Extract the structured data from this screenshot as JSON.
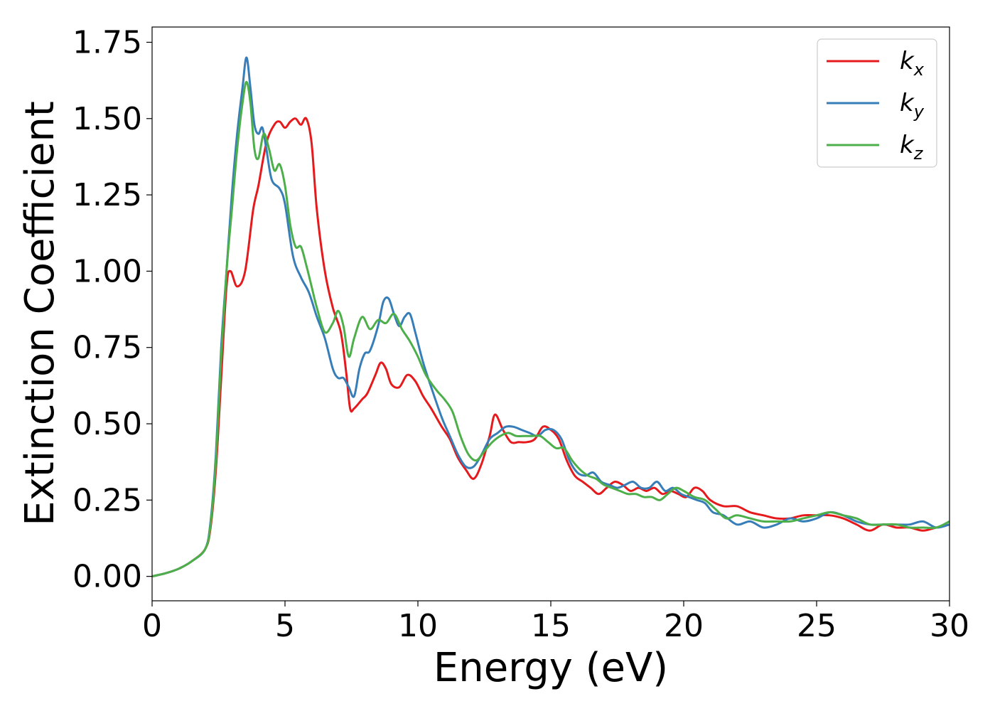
{
  "chart_data": {
    "type": "line",
    "xlabel": "Energy (eV)",
    "ylabel": "Extinction Coefficient",
    "xlim": [
      0,
      30
    ],
    "ylim": [
      -0.08,
      1.8
    ],
    "xticks": [
      0,
      5,
      10,
      15,
      20,
      25,
      30
    ],
    "xtick_labels": [
      "0",
      "5",
      "10",
      "15",
      "20",
      "25",
      "30"
    ],
    "yticks": [
      0,
      0.25,
      0.5,
      0.75,
      1.0,
      1.25,
      1.5,
      1.75
    ],
    "ytick_labels": [
      "0.00",
      "0.25",
      "0.50",
      "0.75",
      "1.00",
      "1.25",
      "1.50",
      "1.75"
    ],
    "grid": false,
    "legend": {
      "position": "upper right"
    },
    "series": [
      {
        "name": "kx",
        "label_base": "k",
        "label_sub": "x",
        "color": "#e41a1c",
        "x": [
          0,
          0.5,
          1,
          1.5,
          2,
          2.2,
          2.4,
          2.6,
          2.8,
          2.95,
          3.2,
          3.5,
          3.8,
          4.0,
          4.3,
          4.6,
          4.8,
          5.0,
          5.2,
          5.4,
          5.6,
          5.8,
          6.0,
          6.2,
          6.5,
          6.8,
          7.1,
          7.3,
          7.45,
          7.6,
          7.9,
          8.1,
          8.4,
          8.6,
          8.8,
          9.0,
          9.3,
          9.6,
          9.9,
          10.2,
          10.5,
          10.9,
          11.2,
          11.5,
          11.8,
          12.1,
          12.4,
          12.7,
          12.9,
          13.2,
          13.5,
          13.8,
          14.1,
          14.4,
          14.7,
          15.0,
          15.3,
          15.6,
          15.9,
          16.2,
          16.5,
          16.8,
          17.1,
          17.4,
          17.7,
          18.0,
          18.3,
          18.6,
          18.9,
          19.2,
          19.5,
          19.8,
          20.1,
          20.4,
          20.7,
          21.0,
          21.5,
          22,
          22.5,
          23,
          23.5,
          24,
          24.5,
          25,
          25.5,
          26,
          26.5,
          27,
          27.5,
          28,
          28.5,
          29,
          29.5,
          30
        ],
        "y": [
          0.0,
          0.01,
          0.025,
          0.05,
          0.09,
          0.16,
          0.35,
          0.65,
          0.95,
          1.0,
          0.95,
          1.0,
          1.2,
          1.28,
          1.42,
          1.48,
          1.49,
          1.47,
          1.49,
          1.5,
          1.48,
          1.5,
          1.42,
          1.2,
          1.0,
          0.88,
          0.8,
          0.67,
          0.55,
          0.55,
          0.58,
          0.6,
          0.66,
          0.7,
          0.68,
          0.63,
          0.62,
          0.66,
          0.64,
          0.59,
          0.55,
          0.49,
          0.45,
          0.39,
          0.35,
          0.32,
          0.37,
          0.46,
          0.53,
          0.48,
          0.44,
          0.44,
          0.44,
          0.45,
          0.49,
          0.48,
          0.45,
          0.38,
          0.33,
          0.31,
          0.29,
          0.27,
          0.29,
          0.31,
          0.3,
          0.28,
          0.29,
          0.28,
          0.29,
          0.27,
          0.28,
          0.27,
          0.26,
          0.29,
          0.28,
          0.25,
          0.23,
          0.23,
          0.21,
          0.2,
          0.19,
          0.19,
          0.2,
          0.2,
          0.2,
          0.19,
          0.17,
          0.15,
          0.17,
          0.16,
          0.16,
          0.15,
          0.16,
          0.17
        ]
      },
      {
        "name": "ky",
        "label_base": "k",
        "label_sub": "y",
        "color": "#377eb8",
        "x": [
          0,
          0.5,
          1,
          1.5,
          2,
          2.2,
          2.4,
          2.6,
          2.8,
          3.0,
          3.2,
          3.4,
          3.55,
          3.7,
          3.85,
          4.0,
          4.15,
          4.3,
          4.5,
          4.8,
          5.0,
          5.3,
          5.6,
          5.9,
          6.2,
          6.5,
          6.8,
          7.0,
          7.2,
          7.4,
          7.6,
          7.8,
          8.0,
          8.2,
          8.5,
          8.7,
          8.9,
          9.1,
          9.3,
          9.5,
          9.7,
          9.9,
          10.2,
          10.5,
          10.9,
          11.2,
          11.5,
          11.8,
          12.1,
          12.4,
          12.7,
          13.0,
          13.3,
          13.6,
          13.9,
          14.2,
          14.5,
          14.8,
          15.1,
          15.4,
          15.7,
          16.0,
          16.3,
          16.6,
          16.9,
          17.2,
          17.5,
          17.8,
          18.1,
          18.4,
          18.7,
          19.0,
          19.3,
          19.6,
          19.9,
          20.2,
          20.5,
          20.8,
          21.1,
          21.5,
          22,
          22.5,
          23,
          23.5,
          24,
          24.5,
          25,
          25.5,
          26,
          26.5,
          27,
          27.5,
          28,
          28.5,
          29,
          29.5,
          30
        ],
        "y": [
          0.0,
          0.01,
          0.025,
          0.05,
          0.09,
          0.18,
          0.4,
          0.75,
          1.0,
          1.25,
          1.45,
          1.6,
          1.7,
          1.6,
          1.48,
          1.45,
          1.47,
          1.4,
          1.3,
          1.27,
          1.22,
          1.05,
          0.98,
          0.93,
          0.85,
          0.78,
          0.68,
          0.65,
          0.65,
          0.62,
          0.59,
          0.68,
          0.73,
          0.74,
          0.82,
          0.9,
          0.91,
          0.86,
          0.82,
          0.85,
          0.86,
          0.8,
          0.7,
          0.62,
          0.52,
          0.46,
          0.4,
          0.36,
          0.36,
          0.4,
          0.45,
          0.47,
          0.49,
          0.49,
          0.48,
          0.47,
          0.46,
          0.48,
          0.48,
          0.45,
          0.38,
          0.34,
          0.33,
          0.34,
          0.31,
          0.3,
          0.29,
          0.3,
          0.31,
          0.29,
          0.29,
          0.31,
          0.28,
          0.29,
          0.27,
          0.26,
          0.25,
          0.24,
          0.21,
          0.2,
          0.17,
          0.18,
          0.16,
          0.17,
          0.19,
          0.18,
          0.19,
          0.21,
          0.2,
          0.18,
          0.17,
          0.17,
          0.17,
          0.17,
          0.18,
          0.16,
          0.17
        ]
      },
      {
        "name": "kz",
        "label_base": "k",
        "label_sub": "z",
        "color": "#4daf4a",
        "x": [
          0,
          0.5,
          1,
          1.5,
          2,
          2.2,
          2.4,
          2.6,
          2.8,
          3.0,
          3.2,
          3.4,
          3.55,
          3.7,
          3.85,
          4.0,
          4.2,
          4.4,
          4.6,
          4.8,
          5.0,
          5.2,
          5.4,
          5.6,
          5.8,
          6.0,
          6.2,
          6.5,
          6.8,
          7.0,
          7.2,
          7.4,
          7.6,
          7.9,
          8.2,
          8.5,
          8.8,
          9.1,
          9.4,
          9.7,
          10.0,
          10.3,
          10.7,
          11.0,
          11.3,
          11.6,
          11.9,
          12.2,
          12.5,
          12.8,
          13.1,
          13.4,
          13.7,
          14.0,
          14.3,
          14.6,
          14.9,
          15.2,
          15.5,
          15.8,
          16.1,
          16.4,
          16.7,
          17.0,
          17.3,
          17.6,
          17.9,
          18.2,
          18.5,
          18.8,
          19.1,
          19.4,
          19.7,
          20.0,
          20.4,
          20.8,
          21.2,
          21.6,
          22,
          22.5,
          23,
          23.5,
          24,
          24.5,
          25,
          25.5,
          26,
          26.5,
          27,
          27.5,
          28,
          28.5,
          29,
          29.5,
          30
        ],
        "y": [
          0.0,
          0.01,
          0.025,
          0.05,
          0.09,
          0.17,
          0.38,
          0.72,
          1.0,
          1.2,
          1.4,
          1.55,
          1.62,
          1.55,
          1.4,
          1.37,
          1.45,
          1.4,
          1.33,
          1.35,
          1.28,
          1.15,
          1.08,
          1.08,
          1.02,
          0.95,
          0.88,
          0.8,
          0.83,
          0.87,
          0.82,
          0.72,
          0.78,
          0.85,
          0.81,
          0.84,
          0.83,
          0.86,
          0.81,
          0.77,
          0.72,
          0.66,
          0.61,
          0.58,
          0.54,
          0.46,
          0.4,
          0.38,
          0.41,
          0.44,
          0.46,
          0.47,
          0.46,
          0.46,
          0.46,
          0.46,
          0.44,
          0.42,
          0.42,
          0.38,
          0.35,
          0.33,
          0.32,
          0.3,
          0.29,
          0.28,
          0.27,
          0.27,
          0.26,
          0.26,
          0.25,
          0.27,
          0.29,
          0.28,
          0.26,
          0.25,
          0.22,
          0.19,
          0.2,
          0.19,
          0.18,
          0.18,
          0.18,
          0.19,
          0.2,
          0.21,
          0.2,
          0.19,
          0.17,
          0.17,
          0.17,
          0.16,
          0.16,
          0.16,
          0.18
        ]
      }
    ]
  }
}
